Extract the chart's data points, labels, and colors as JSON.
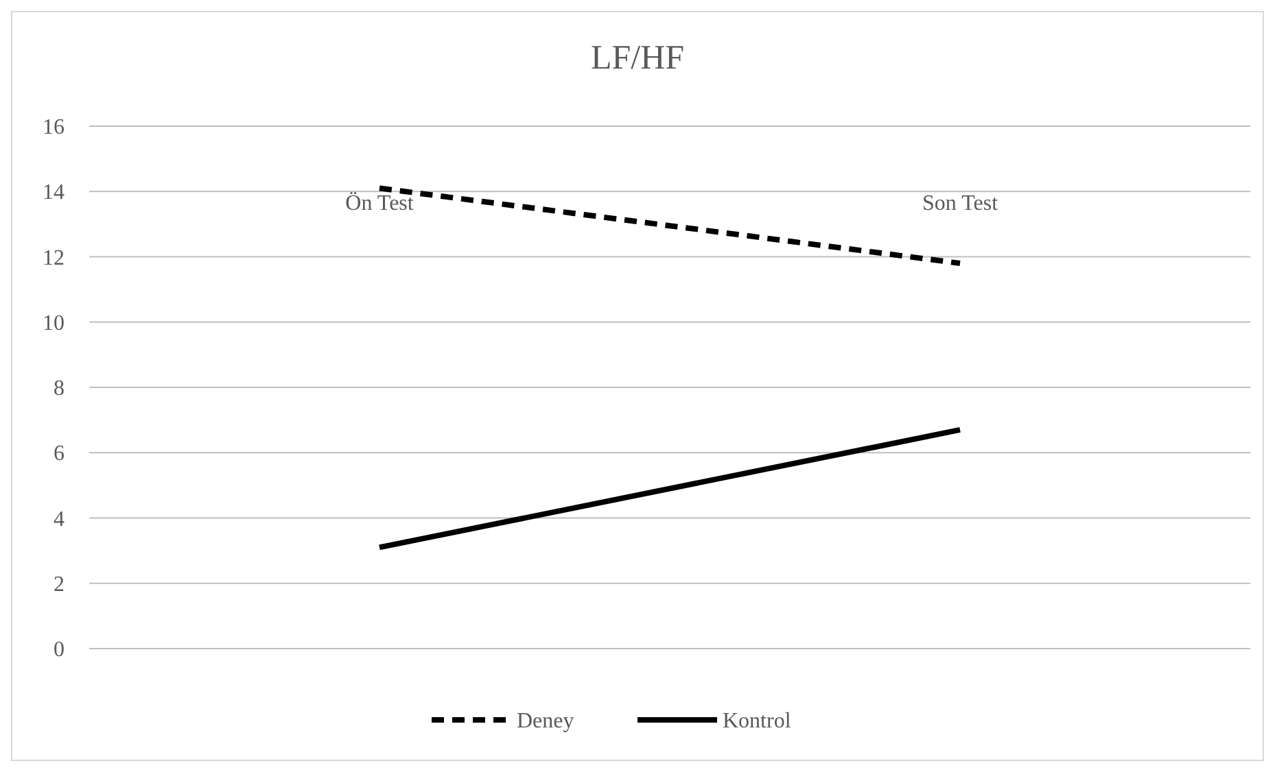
{
  "chart_data": {
    "type": "line",
    "title": "LF/HF",
    "categories": [
      "Ön Test",
      "Son Test"
    ],
    "series": [
      {
        "name": "Deney",
        "color": "#000000",
        "values": [
          14.1,
          11.8
        ],
        "line_style": "dashed"
      },
      {
        "name": "Kontrol",
        "color": "#000000",
        "values": [
          3.1,
          6.7
        ],
        "line_style": "solid"
      }
    ],
    "ylim": [
      0,
      16
    ],
    "yticks": [
      0,
      2,
      4,
      6,
      8,
      10,
      12,
      14,
      16
    ],
    "grid": "y",
    "legend": "bottom",
    "marker": "none"
  }
}
